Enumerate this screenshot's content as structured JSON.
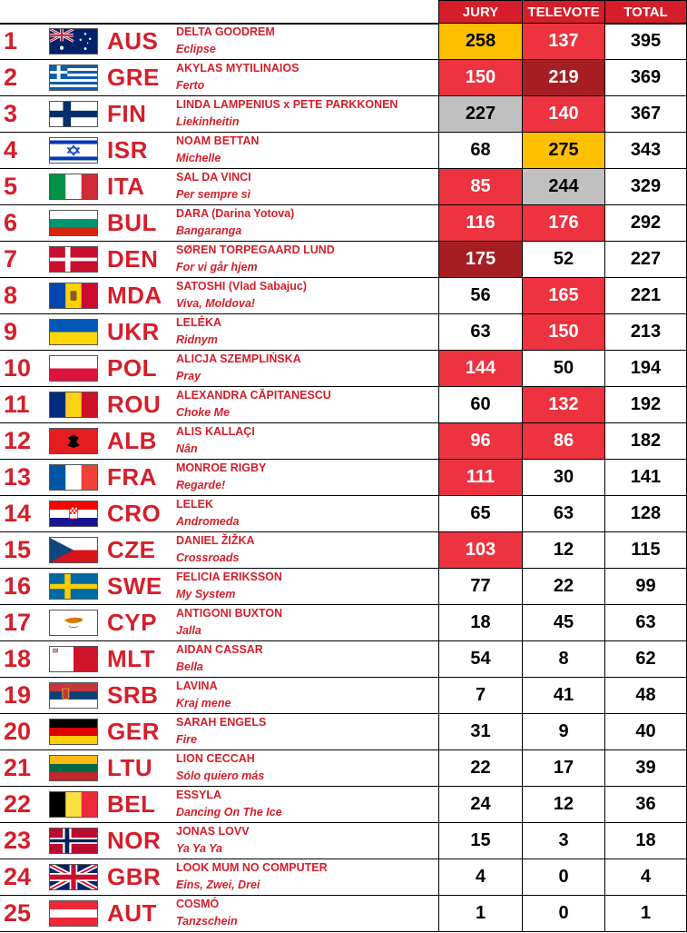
{
  "header": {
    "jury": "JURY",
    "televote": "TELEVOTE",
    "total": "TOTAL"
  },
  "colors": {
    "accent": "#d51e2a",
    "gold": "#ffc000",
    "silver": "#c0c0c0",
    "red": "#ed3340",
    "dark_red": "#a71d24"
  },
  "rows": [
    {
      "rank": "1",
      "code": "AUS",
      "flag": "flag-australia-icon",
      "artist": "DELTA GOODREM",
      "song": "Eclipse",
      "jury": "258",
      "televote": "137",
      "total": "395",
      "jury_hl": "gold",
      "tele_hl": "red"
    },
    {
      "rank": "2",
      "code": "GRE",
      "flag": "flag-greece-icon",
      "artist": "AKYLAS MYTILINAIOS",
      "song": "Ferto",
      "jury": "150",
      "televote": "219",
      "total": "369",
      "jury_hl": "red",
      "tele_hl": "dark"
    },
    {
      "rank": "3",
      "code": "FIN",
      "flag": "flag-finland-icon",
      "artist": "LINDA LAMPENIUS x PETE PARKKONEN",
      "song": "Liekinheitin",
      "jury": "227",
      "televote": "140",
      "total": "367",
      "jury_hl": "silver",
      "tele_hl": "red"
    },
    {
      "rank": "4",
      "code": "ISR",
      "flag": "flag-israel-icon",
      "artist": "NOAM BETTAN",
      "song": "Michelle",
      "jury": "68",
      "televote": "275",
      "total": "343",
      "jury_hl": "",
      "tele_hl": "gold"
    },
    {
      "rank": "5",
      "code": "ITA",
      "flag": "flag-italy-icon",
      "artist": "SAL DA VINCI",
      "song": "Per sempre sì",
      "jury": "85",
      "televote": "244",
      "total": "329",
      "jury_hl": "red",
      "tele_hl": "silver"
    },
    {
      "rank": "6",
      "code": "BUL",
      "flag": "flag-bulgaria-icon",
      "artist": "DARA (Darina Yotova)",
      "song": "Bangaranga",
      "jury": "116",
      "televote": "176",
      "total": "292",
      "jury_hl": "red",
      "tele_hl": "red"
    },
    {
      "rank": "7",
      "code": "DEN",
      "flag": "flag-denmark-icon",
      "artist": "SØREN TORPEGAARD LUND",
      "song": "For vi går hjem",
      "jury": "175",
      "televote": "52",
      "total": "227",
      "jury_hl": "dark",
      "tele_hl": ""
    },
    {
      "rank": "8",
      "code": "MDA",
      "flag": "flag-moldova-icon",
      "artist": "SATOSHI (Vlad Sabajuc)",
      "song": "Viva, Moldova!",
      "jury": "56",
      "televote": "165",
      "total": "221",
      "jury_hl": "",
      "tele_hl": "red"
    },
    {
      "rank": "9",
      "code": "UKR",
      "flag": "flag-ukraine-icon",
      "artist": "LELÉKA",
      "song": "Ridnym",
      "jury": "63",
      "televote": "150",
      "total": "213",
      "jury_hl": "",
      "tele_hl": "red"
    },
    {
      "rank": "10",
      "code": "POL",
      "flag": "flag-poland-icon",
      "artist": "ALICJA SZEMPLIŃSKA",
      "song": "Pray",
      "jury": "144",
      "televote": "50",
      "total": "194",
      "jury_hl": "red",
      "tele_hl": ""
    },
    {
      "rank": "11",
      "code": "ROU",
      "flag": "flag-romania-icon",
      "artist": "ALEXANDRA CĂPITANESCU",
      "song": "Choke Me",
      "jury": "60",
      "televote": "132",
      "total": "192",
      "jury_hl": "",
      "tele_hl": "red"
    },
    {
      "rank": "12",
      "code": "ALB",
      "flag": "flag-albania-icon",
      "artist": "ALIS KALLAÇI",
      "song": "Nân",
      "jury": "96",
      "televote": "86",
      "total": "182",
      "jury_hl": "red",
      "tele_hl": "red"
    },
    {
      "rank": "13",
      "code": "FRA",
      "flag": "flag-france-icon",
      "artist": "MONROE RIGBY",
      "song": "Regarde!",
      "jury": "111",
      "televote": "30",
      "total": "141",
      "jury_hl": "red",
      "tele_hl": ""
    },
    {
      "rank": "14",
      "code": "CRO",
      "flag": "flag-croatia-icon",
      "artist": "LELEK",
      "song": "Andromeda",
      "jury": "65",
      "televote": "63",
      "total": "128",
      "jury_hl": "",
      "tele_hl": ""
    },
    {
      "rank": "15",
      "code": "CZE",
      "flag": "flag-czechia-icon",
      "artist": "DANIEL ŽIŽKA",
      "song": "Crossroads",
      "jury": "103",
      "televote": "12",
      "total": "115",
      "jury_hl": "red",
      "tele_hl": ""
    },
    {
      "rank": "16",
      "code": "SWE",
      "flag": "flag-sweden-icon",
      "artist": "FELICIA ERIKSSON",
      "song": "My System",
      "jury": "77",
      "televote": "22",
      "total": "99",
      "jury_hl": "",
      "tele_hl": ""
    },
    {
      "rank": "17",
      "code": "CYP",
      "flag": "flag-cyprus-icon",
      "artist": "ANTIGONI BUXTON",
      "song": "Jalla",
      "jury": "18",
      "televote": "45",
      "total": "63",
      "jury_hl": "",
      "tele_hl": ""
    },
    {
      "rank": "18",
      "code": "MLT",
      "flag": "flag-malta-icon",
      "artist": "AIDAN CASSAR",
      "song": "Bella",
      "jury": "54",
      "televote": "8",
      "total": "62",
      "jury_hl": "",
      "tele_hl": ""
    },
    {
      "rank": "19",
      "code": "SRB",
      "flag": "flag-serbia-icon",
      "artist": "LAVINA",
      "song": "Kraj mene",
      "jury": "7",
      "televote": "41",
      "total": "48",
      "jury_hl": "",
      "tele_hl": ""
    },
    {
      "rank": "20",
      "code": "GER",
      "flag": "flag-germany-icon",
      "artist": "SARAH ENGELS",
      "song": "Fire",
      "jury": "31",
      "televote": "9",
      "total": "40",
      "jury_hl": "",
      "tele_hl": ""
    },
    {
      "rank": "21",
      "code": "LTU",
      "flag": "flag-lithuania-icon",
      "artist": "LION CECCAH",
      "song": "Sólo quiero más",
      "jury": "22",
      "televote": "17",
      "total": "39",
      "jury_hl": "",
      "tele_hl": ""
    },
    {
      "rank": "22",
      "code": "BEL",
      "flag": "flag-belgium-icon",
      "artist": "ESSYLA",
      "song": "Dancing On The Ice",
      "jury": "24",
      "televote": "12",
      "total": "36",
      "jury_hl": "",
      "tele_hl": ""
    },
    {
      "rank": "23",
      "code": "NOR",
      "flag": "flag-norway-icon",
      "artist": "JONAS LOVV",
      "song": "Ya Ya Ya",
      "jury": "15",
      "televote": "3",
      "total": "18",
      "jury_hl": "",
      "tele_hl": ""
    },
    {
      "rank": "24",
      "code": "GBR",
      "flag": "flag-united-kingdom-icon",
      "artist": "LOOK MUM NO COMPUTER",
      "song": "Eins, Zwei, Drei",
      "jury": "4",
      "televote": "0",
      "total": "4",
      "jury_hl": "",
      "tele_hl": ""
    },
    {
      "rank": "25",
      "code": "AUT",
      "flag": "flag-austria-icon",
      "artist": "COSMÓ",
      "song": "Tanzschein",
      "jury": "1",
      "televote": "0",
      "total": "1",
      "jury_hl": "",
      "tele_hl": ""
    }
  ]
}
